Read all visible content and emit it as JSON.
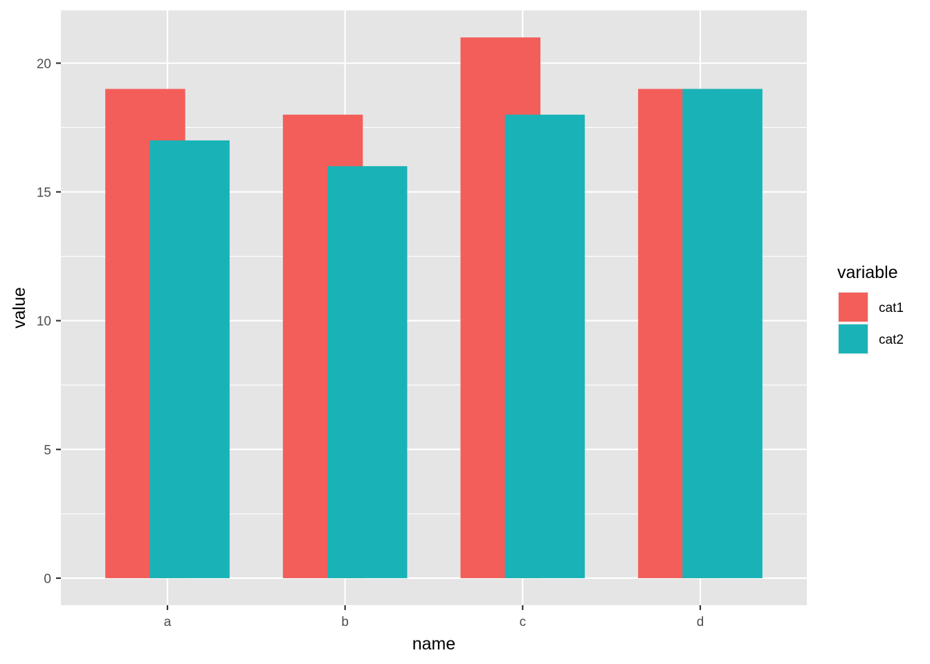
{
  "chart_data": {
    "type": "bar",
    "categories": [
      "a",
      "b",
      "c",
      "d"
    ],
    "series": [
      {
        "name": "cat1",
        "values": [
          19,
          18,
          21,
          19
        ],
        "color": "#F35E5A"
      },
      {
        "name": "cat2",
        "values": [
          17,
          16,
          18,
          19
        ],
        "color": "#19B3B7"
      }
    ],
    "xlabel": "name",
    "ylabel": "value",
    "ylim": [
      -1.05,
      22.05
    ],
    "y_ticks": [
      0,
      5,
      10,
      15,
      20
    ],
    "y_tick_labels": [
      "0",
      "5",
      "10",
      "15",
      "20"
    ],
    "grid": true,
    "legend": {
      "title": "variable",
      "position": "right"
    },
    "panel_background": "#E5E5E5",
    "grid_color": "#FFFFFF"
  }
}
